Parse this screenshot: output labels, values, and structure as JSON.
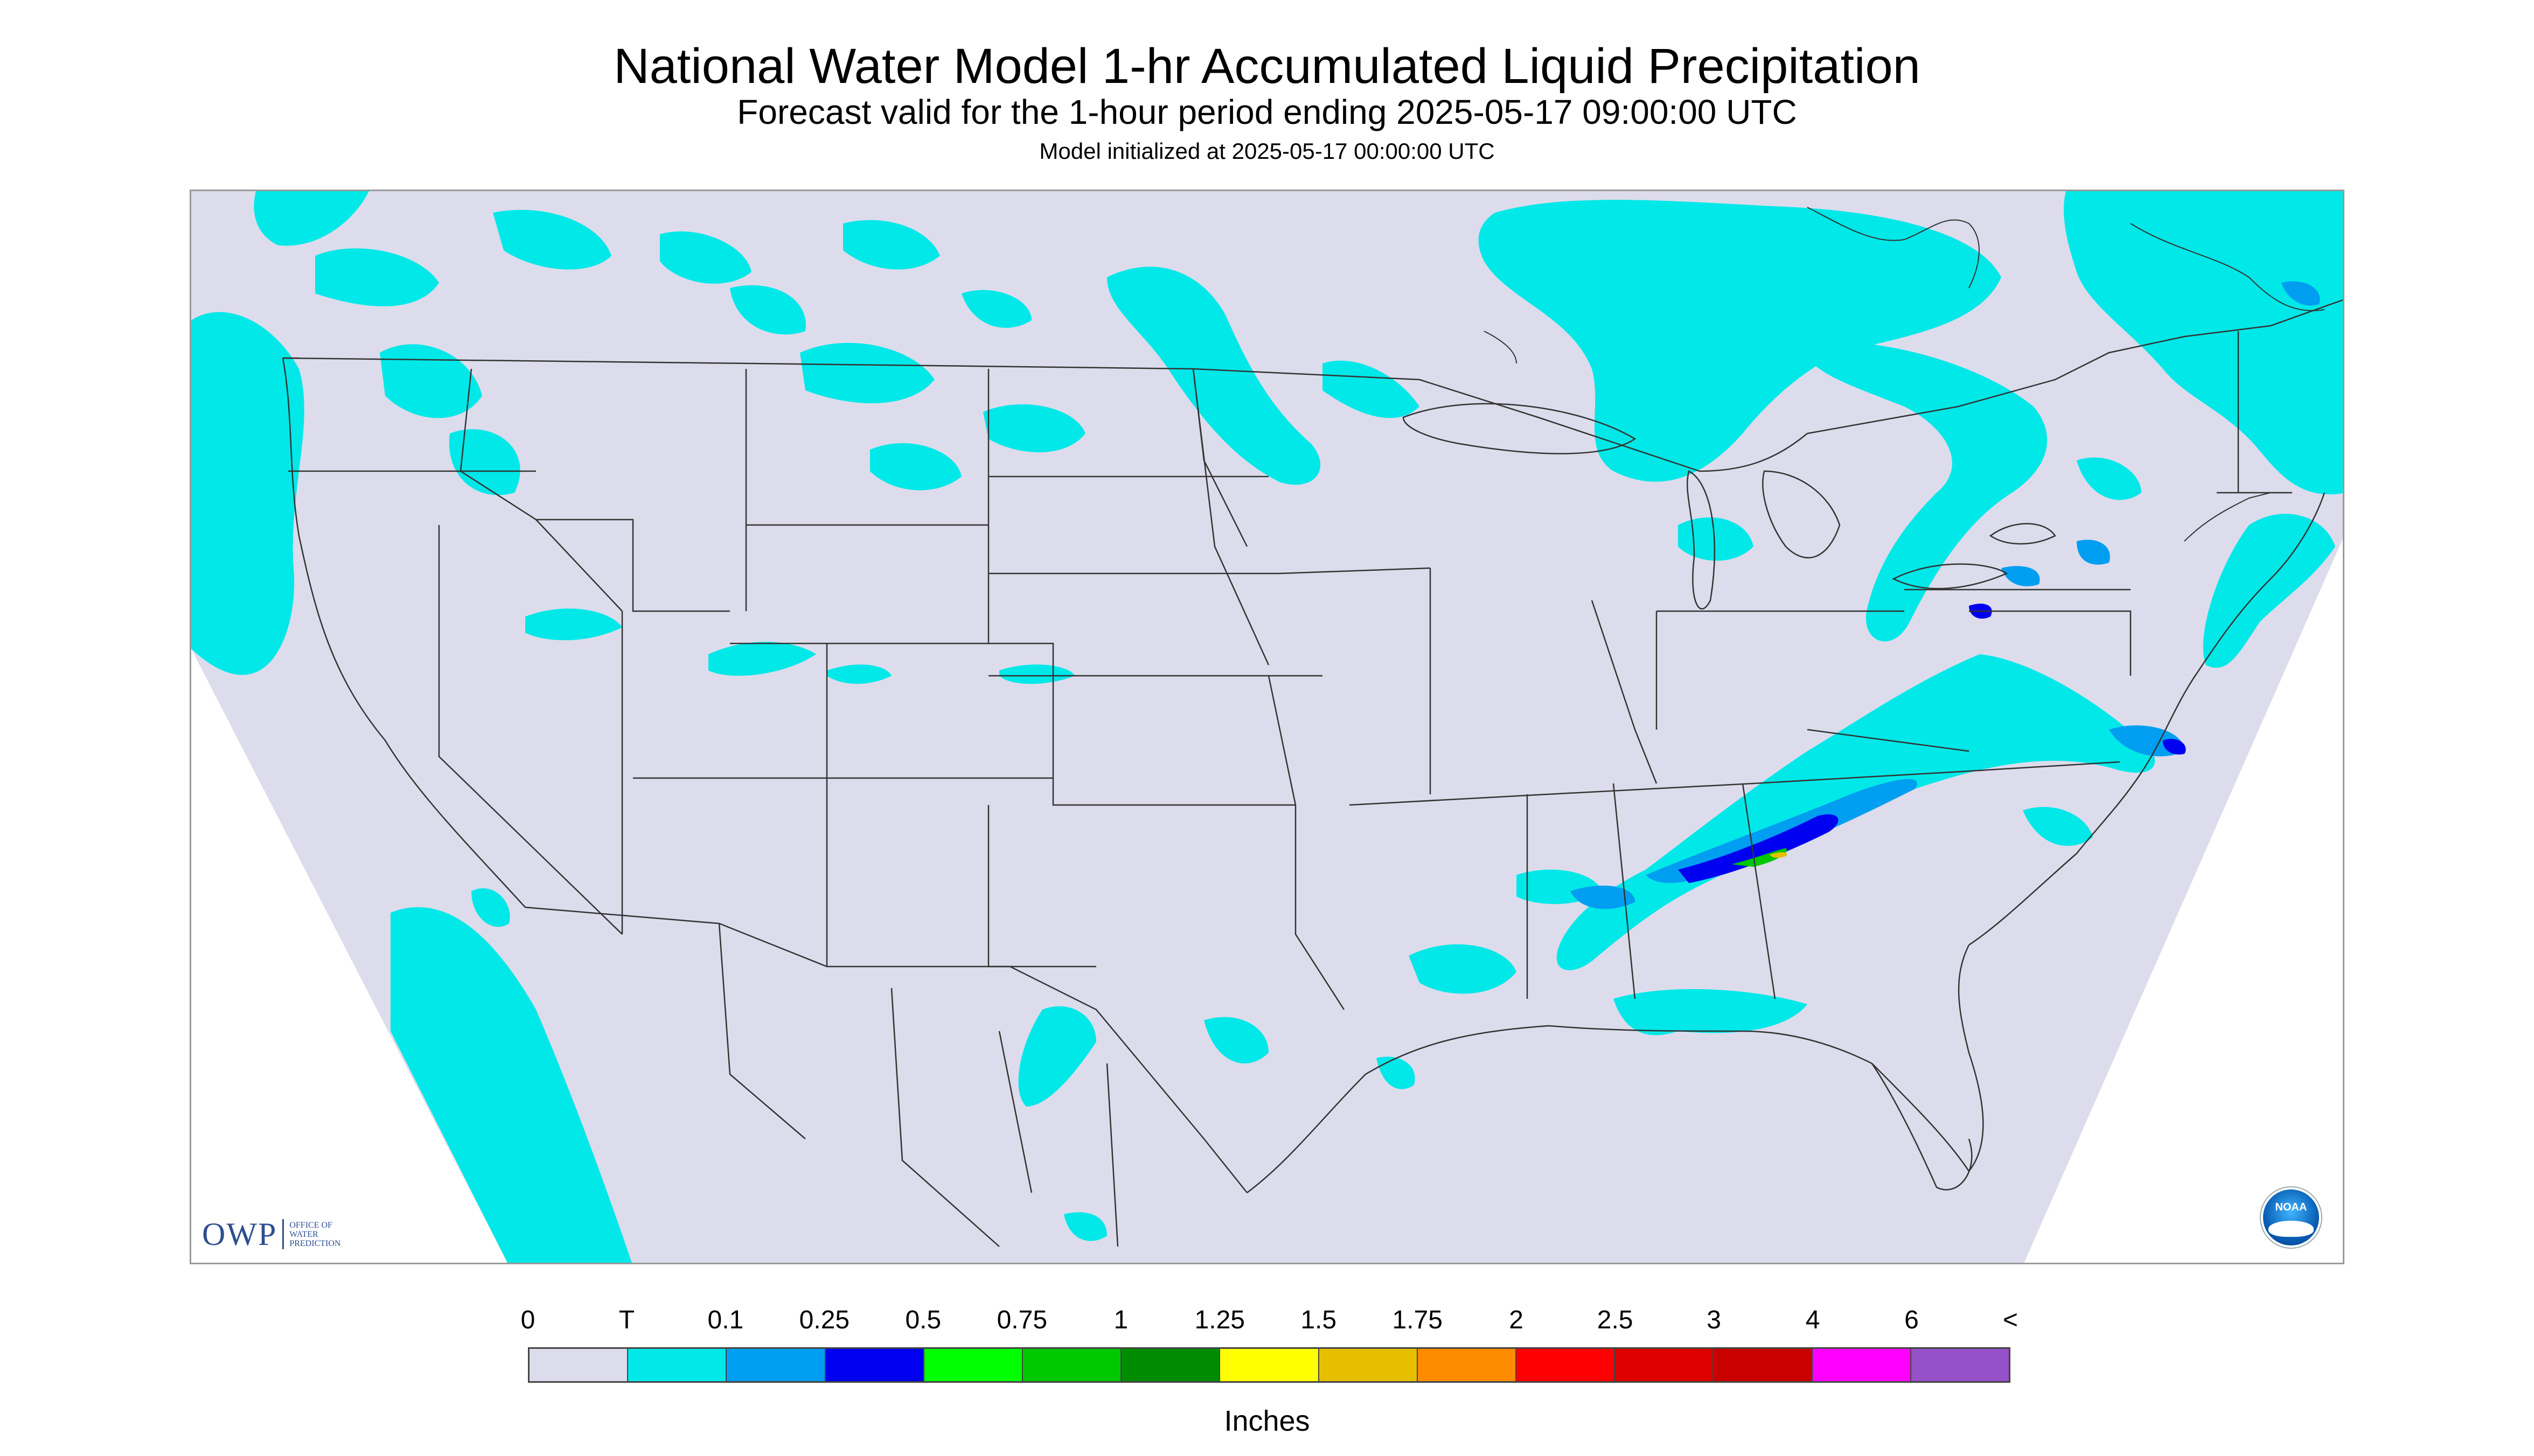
{
  "title": "National Water Model 1-hr Accumulated Liquid Precipitation",
  "subtitle": "Forecast valid for the 1-hour period ending 2025-05-17 09:00:00 UTC",
  "init_line": "Model initialized at 2025-05-17 00:00:00 UTC",
  "logos": {
    "owp": {
      "mark": "OWP",
      "text": [
        "OFFICE OF",
        "WATER",
        "PREDICTION"
      ]
    },
    "noaa": {
      "label": "NOAA"
    }
  },
  "colors": {
    "domain_background": "#dcdcec",
    "outside_domain": "#ffffff",
    "boundaries": "#333333"
  },
  "legend": {
    "units": "Inches",
    "tick_labels": [
      "0",
      "T",
      "0.1",
      "0.25",
      "0.5",
      "0.75",
      "1",
      "1.25",
      "1.5",
      "1.75",
      "2",
      "2.5",
      "3",
      "4",
      "6",
      "<"
    ],
    "colors": [
      "#dcdcec",
      "#00e8e8",
      "#009ef0",
      "#0000f0",
      "#00ff00",
      "#00c800",
      "#008c00",
      "#ffff00",
      "#e6c000",
      "#ff8c00",
      "#ff0000",
      "#dc0000",
      "#c80000",
      "#ff00ff",
      "#9650c8"
    ]
  }
}
